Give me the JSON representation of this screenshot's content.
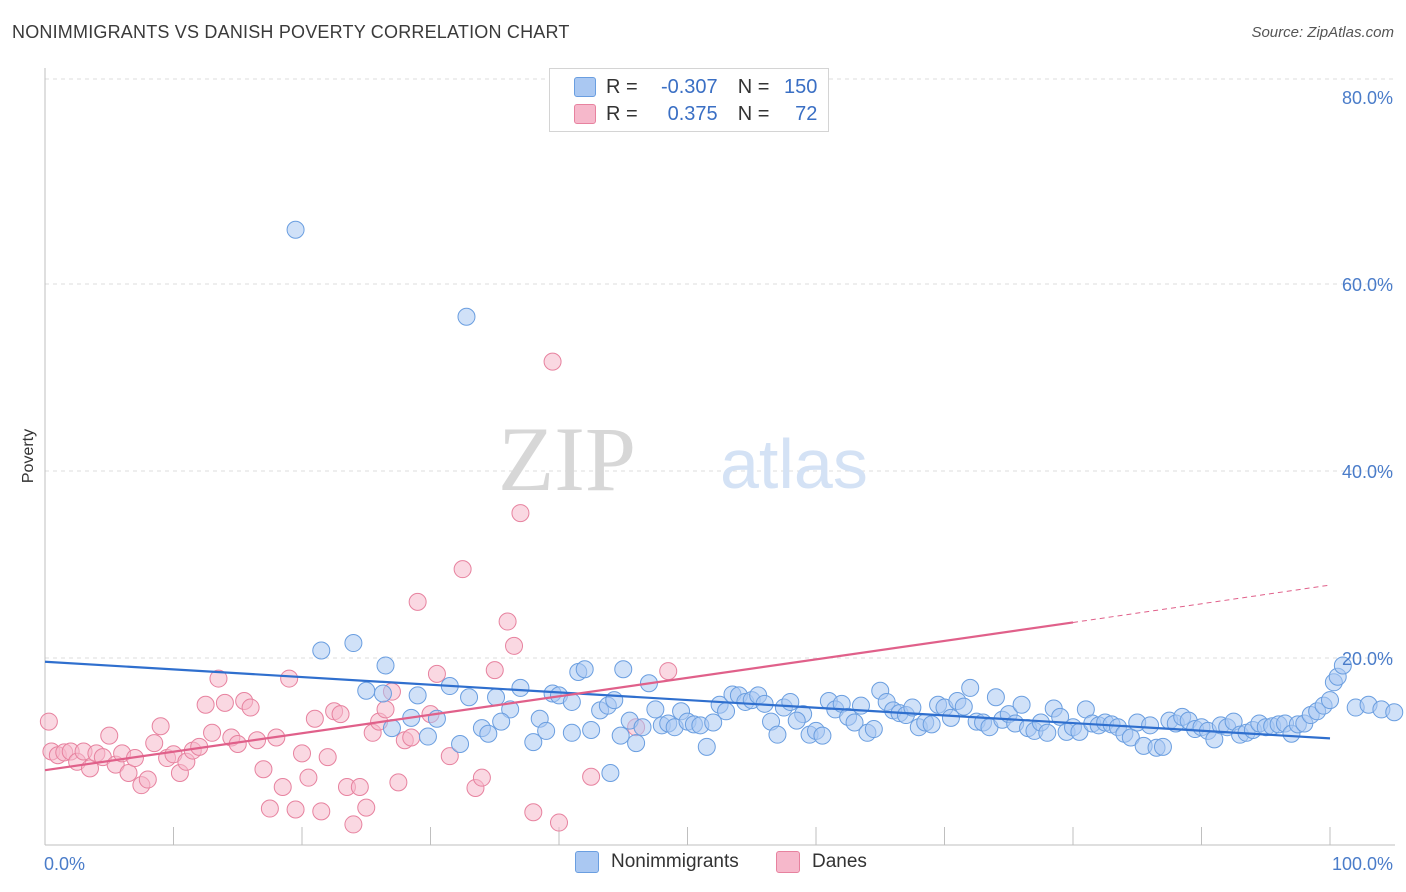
{
  "title": "NONIMMIGRANTS VS DANISH POVERTY CORRELATION CHART",
  "source": "Source: ZipAtlas.com",
  "watermark": {
    "zip": "ZIP",
    "atlas": "atlas"
  },
  "legend": {
    "rows": [
      {
        "r_label": "R =",
        "r_value": "-0.307",
        "n_label": "N =",
        "n_value": "150",
        "color": "#aac8f2"
      },
      {
        "r_label": "R =",
        "r_value": "0.375",
        "n_label": "N =",
        "n_value": "72",
        "color": "#f6b8cb"
      }
    ]
  },
  "bottom_legend": {
    "nonimmigrants": {
      "label": "Nonimmigrants",
      "color": "#aac8f2"
    },
    "danes": {
      "label": "Danes",
      "color": "#f6b8cb"
    }
  },
  "chart_data": {
    "type": "scatter",
    "title": "NONIMMIGRANTS VS DANISH POVERTY CORRELATION CHART",
    "xlabel": "",
    "ylabel": "Poverty",
    "xlim": [
      0,
      100
    ],
    "ylim": [
      0,
      80
    ],
    "x_tick_labels": [
      "0.0%",
      "100.0%"
    ],
    "y_ticks": [
      20,
      40,
      60,
      80
    ],
    "y_tick_labels": [
      "20.0%",
      "40.0%",
      "60.0%",
      "80.0%"
    ],
    "grid": "horizontal dashed",
    "legend_position": "top-center",
    "series": [
      {
        "name": "Nonimmigrants",
        "color": "#6a9ee0",
        "fill": "#aac8f2",
        "trend": {
          "x": [
            0,
            100
          ],
          "y": [
            19.6,
            11.4
          ],
          "style": "solid",
          "color": "#2f6fce"
        },
        "points": [
          [
            19.5,
            65.8
          ],
          [
            32.8,
            56.5
          ],
          [
            21.5,
            20.8
          ],
          [
            24.0,
            21.6
          ],
          [
            26.5,
            19.2
          ],
          [
            25.0,
            16.5
          ],
          [
            26.3,
            16.2
          ],
          [
            29.0,
            16.0
          ],
          [
            31.5,
            17.0
          ],
          [
            33.0,
            15.8
          ],
          [
            27.0,
            12.5
          ],
          [
            28.5,
            13.6
          ],
          [
            29.8,
            11.6
          ],
          [
            30.5,
            13.5
          ],
          [
            32.3,
            10.8
          ],
          [
            34.0,
            12.5
          ],
          [
            34.5,
            11.9
          ],
          [
            35.1,
            15.8
          ],
          [
            36.2,
            14.5
          ],
          [
            37.0,
            16.8
          ],
          [
            38.0,
            11.0
          ],
          [
            38.5,
            13.5
          ],
          [
            39.0,
            12.2
          ],
          [
            39.5,
            16.2
          ],
          [
            40.0,
            16.0
          ],
          [
            41.0,
            15.3
          ],
          [
            41.5,
            18.5
          ],
          [
            42.0,
            18.8
          ],
          [
            42.5,
            12.3
          ],
          [
            43.2,
            14.4
          ],
          [
            43.8,
            14.9
          ],
          [
            44.3,
            15.5
          ],
          [
            44.8,
            11.7
          ],
          [
            45.0,
            18.8
          ],
          [
            45.5,
            13.3
          ],
          [
            46.0,
            10.9
          ],
          [
            47.0,
            17.3
          ],
          [
            47.5,
            14.5
          ],
          [
            48.0,
            12.8
          ],
          [
            48.5,
            13.0
          ],
          [
            49.0,
            12.6
          ],
          [
            49.5,
            14.3
          ],
          [
            50.0,
            13.2
          ],
          [
            50.5,
            12.9
          ],
          [
            51.0,
            12.8
          ],
          [
            51.5,
            10.5
          ],
          [
            52.0,
            13.1
          ],
          [
            52.5,
            15.0
          ],
          [
            53.0,
            14.3
          ],
          [
            53.5,
            16.1
          ],
          [
            54.0,
            16.0
          ],
          [
            54.5,
            15.3
          ],
          [
            55.0,
            15.5
          ],
          [
            55.5,
            16.0
          ],
          [
            56.0,
            15.1
          ],
          [
            56.5,
            13.2
          ],
          [
            57.0,
            11.8
          ],
          [
            57.5,
            14.7
          ],
          [
            58.0,
            15.3
          ],
          [
            59.0,
            14.0
          ],
          [
            59.5,
            11.8
          ],
          [
            60.0,
            12.2
          ],
          [
            60.5,
            11.7
          ],
          [
            61.0,
            15.4
          ],
          [
            61.5,
            14.5
          ],
          [
            62.0,
            15.1
          ],
          [
            62.5,
            13.7
          ],
          [
            63.0,
            13.1
          ],
          [
            63.5,
            14.9
          ],
          [
            64.0,
            12.0
          ],
          [
            64.5,
            12.4
          ],
          [
            65.0,
            16.5
          ],
          [
            65.5,
            15.3
          ],
          [
            66.0,
            14.4
          ],
          [
            66.5,
            14.1
          ],
          [
            67.0,
            13.9
          ],
          [
            67.5,
            14.7
          ],
          [
            68.0,
            12.6
          ],
          [
            68.5,
            13.1
          ],
          [
            69.0,
            12.9
          ],
          [
            69.5,
            15.0
          ],
          [
            70.0,
            14.7
          ],
          [
            70.5,
            13.6
          ],
          [
            71.0,
            15.4
          ],
          [
            71.5,
            14.8
          ],
          [
            72.0,
            16.8
          ],
          [
            72.5,
            13.2
          ],
          [
            73.0,
            13.1
          ],
          [
            73.5,
            12.6
          ],
          [
            74.0,
            15.8
          ],
          [
            74.5,
            13.4
          ],
          [
            75.0,
            14.0
          ],
          [
            75.5,
            13.0
          ],
          [
            76.0,
            15.0
          ],
          [
            76.5,
            12.5
          ],
          [
            77.0,
            12.2
          ],
          [
            77.5,
            13.1
          ],
          [
            78.0,
            12.0
          ],
          [
            78.5,
            14.6
          ],
          [
            79.0,
            13.7
          ],
          [
            79.5,
            12.1
          ],
          [
            80.0,
            12.6
          ],
          [
            80.5,
            12.1
          ],
          [
            81.0,
            14.5
          ],
          [
            81.5,
            13.0
          ],
          [
            82.0,
            12.8
          ],
          [
            82.5,
            13.1
          ],
          [
            83.0,
            12.9
          ],
          [
            83.5,
            12.6
          ],
          [
            84.0,
            11.9
          ],
          [
            84.5,
            11.5
          ],
          [
            85.0,
            13.1
          ],
          [
            85.5,
            10.6
          ],
          [
            86.0,
            12.8
          ],
          [
            86.5,
            10.4
          ],
          [
            87.0,
            10.5
          ],
          [
            87.5,
            13.3
          ],
          [
            88.0,
            13.0
          ],
          [
            88.5,
            13.7
          ],
          [
            89.0,
            13.3
          ],
          [
            89.5,
            12.4
          ],
          [
            90.0,
            12.6
          ],
          [
            90.5,
            12.2
          ],
          [
            91.0,
            11.3
          ],
          [
            91.5,
            12.8
          ],
          [
            92.0,
            12.6
          ],
          [
            92.5,
            13.2
          ],
          [
            93.0,
            11.8
          ],
          [
            93.5,
            12.0
          ],
          [
            94.0,
            12.3
          ],
          [
            94.5,
            13.0
          ],
          [
            95.0,
            12.6
          ],
          [
            95.5,
            12.7
          ],
          [
            96.0,
            12.9
          ],
          [
            96.5,
            13.0
          ],
          [
            97.0,
            11.9
          ],
          [
            97.5,
            12.9
          ],
          [
            98.0,
            13.0
          ],
          [
            98.5,
            13.9
          ],
          [
            99.0,
            14.3
          ],
          [
            99.5,
            14.9
          ],
          [
            100.0,
            15.5
          ],
          [
            100.3,
            17.4
          ],
          [
            100.6,
            18.0
          ],
          [
            101.0,
            19.2
          ],
          [
            102.0,
            14.7
          ],
          [
            103.0,
            15.0
          ],
          [
            104.0,
            14.5
          ],
          [
            105.0,
            14.2
          ],
          [
            35.5,
            13.2
          ],
          [
            41.0,
            12.0
          ],
          [
            44.0,
            7.7
          ],
          [
            46.5,
            12.6
          ],
          [
            58.5,
            13.3
          ]
        ]
      },
      {
        "name": "Danes",
        "color": "#e7829f",
        "fill": "#f6b8cb",
        "trend": {
          "x": [
            0,
            80
          ],
          "y": [
            8.0,
            23.8
          ],
          "x_dashed": [
            80,
            100
          ],
          "y_dashed": [
            23.8,
            27.8
          ],
          "style": "solid+dashed",
          "color": "#e0608a"
        },
        "points": [
          [
            0.3,
            13.2
          ],
          [
            0.5,
            10.0
          ],
          [
            1.0,
            9.6
          ],
          [
            1.5,
            9.9
          ],
          [
            2.0,
            10.0
          ],
          [
            2.5,
            8.9
          ],
          [
            3.0,
            10.0
          ],
          [
            3.5,
            8.2
          ],
          [
            4.0,
            9.8
          ],
          [
            4.5,
            9.4
          ],
          [
            5.0,
            11.7
          ],
          [
            5.5,
            8.6
          ],
          [
            6.0,
            9.8
          ],
          [
            6.5,
            7.7
          ],
          [
            7.0,
            9.3
          ],
          [
            7.5,
            6.4
          ],
          [
            8.0,
            7.0
          ],
          [
            8.5,
            10.9
          ],
          [
            9.0,
            12.7
          ],
          [
            9.5,
            9.3
          ],
          [
            10.0,
            9.7
          ],
          [
            10.5,
            7.7
          ],
          [
            11.0,
            8.9
          ],
          [
            11.5,
            10.1
          ],
          [
            12.0,
            10.5
          ],
          [
            12.5,
            15.0
          ],
          [
            13.0,
            12.0
          ],
          [
            13.5,
            17.8
          ],
          [
            14.0,
            15.2
          ],
          [
            14.5,
            11.5
          ],
          [
            15.0,
            10.8
          ],
          [
            15.5,
            15.4
          ],
          [
            16.0,
            14.7
          ],
          [
            16.5,
            11.2
          ],
          [
            17.0,
            8.1
          ],
          [
            17.5,
            3.9
          ],
          [
            18.0,
            11.5
          ],
          [
            18.5,
            6.2
          ],
          [
            19.0,
            17.8
          ],
          [
            19.5,
            3.8
          ],
          [
            20.0,
            9.8
          ],
          [
            20.5,
            7.2
          ],
          [
            21.0,
            13.5
          ],
          [
            21.5,
            3.6
          ],
          [
            22.0,
            9.4
          ],
          [
            22.5,
            14.3
          ],
          [
            23.0,
            14.0
          ],
          [
            23.5,
            6.2
          ],
          [
            24.0,
            2.2
          ],
          [
            24.5,
            6.2
          ],
          [
            25.0,
            4.0
          ],
          [
            25.5,
            12.0
          ],
          [
            26.0,
            13.2
          ],
          [
            26.5,
            14.5
          ],
          [
            27.0,
            16.4
          ],
          [
            27.5,
            6.7
          ],
          [
            28.0,
            11.2
          ],
          [
            28.5,
            11.5
          ],
          [
            29.0,
            26.0
          ],
          [
            30.0,
            14.0
          ],
          [
            30.5,
            18.3
          ],
          [
            31.5,
            9.5
          ],
          [
            32.5,
            29.5
          ],
          [
            33.5,
            6.1
          ],
          [
            34.0,
            7.2
          ],
          [
            35.0,
            18.7
          ],
          [
            36.0,
            23.9
          ],
          [
            36.5,
            21.3
          ],
          [
            37.0,
            35.5
          ],
          [
            38.0,
            3.5
          ],
          [
            39.5,
            51.7
          ],
          [
            40.0,
            2.4
          ],
          [
            42.5,
            7.3
          ],
          [
            46.0,
            12.6
          ],
          [
            48.5,
            18.6
          ]
        ]
      }
    ]
  }
}
